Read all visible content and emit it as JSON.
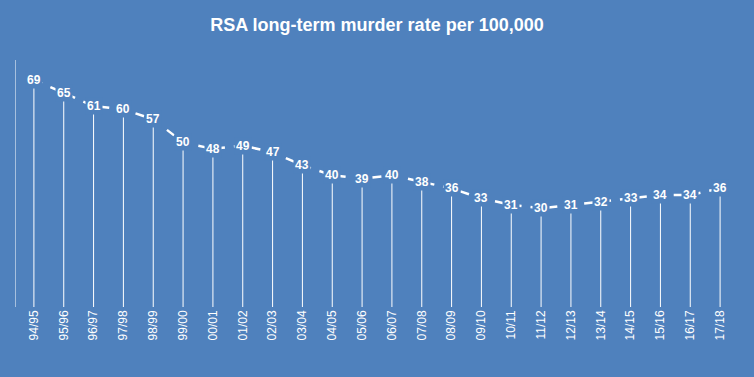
{
  "chart_data": {
    "type": "line",
    "title": "RSA long-term murder rate per 100,000",
    "categories": [
      "94/95",
      "95/96",
      "96/97",
      "97/98",
      "98/99",
      "99/00",
      "00/01",
      "01/02",
      "02/03",
      "03/04",
      "04/05",
      "05/06",
      "06/07",
      "07/08",
      "08/09",
      "09/10",
      "10/11",
      "11/12",
      "12/13",
      "13/14",
      "14/15",
      "15/16",
      "16/17",
      "17/18"
    ],
    "values": [
      69,
      65,
      61,
      60,
      57,
      50,
      48,
      49,
      47,
      43,
      40,
      39,
      40,
      38,
      36,
      33,
      31,
      30,
      31,
      32,
      33,
      34,
      34,
      36
    ],
    "color": "#ffffff",
    "line_style": "dash",
    "ylim": [
      0,
      75
    ],
    "grid": false,
    "data_labels": true,
    "tick_labels": "x"
  }
}
